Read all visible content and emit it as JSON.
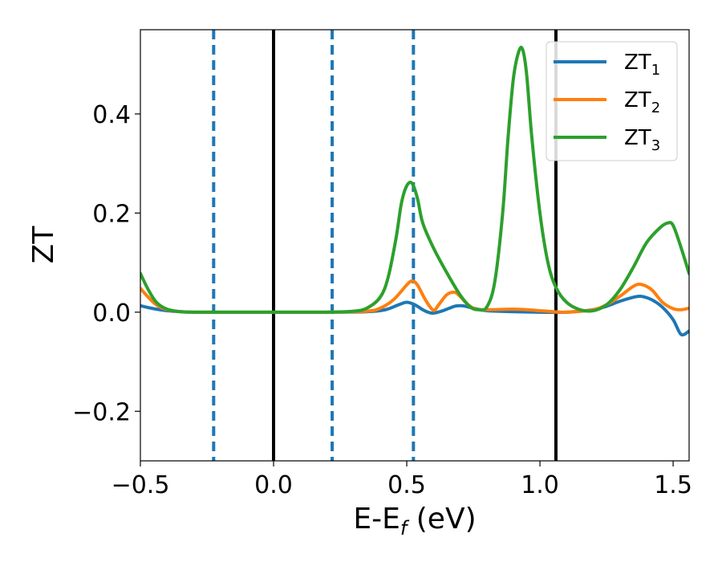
{
  "chart_data": {
    "type": "line",
    "xlabel": "E-E",
    "xlabel_sub": "f",
    "xlabel_unit": " (eV)",
    "ylabel": "ZT",
    "xlim": [
      -0.5,
      1.56
    ],
    "ylim": [
      -0.3,
      0.57
    ],
    "xticks": [
      -0.5,
      0.0,
      0.5,
      1.0,
      1.5
    ],
    "xtick_labels": [
      "−0.5",
      "0.0",
      "0.5",
      "1.0",
      "1.5"
    ],
    "yticks": [
      -0.2,
      0.0,
      0.2,
      0.4
    ],
    "ytick_labels": [
      "−0.2",
      "0.0",
      "0.2",
      "0.4"
    ],
    "grid": false,
    "legend_position": "top-right",
    "vlines_solid": [
      0.0,
      1.06
    ],
    "vlines_dashed": [
      -0.225,
      0.22,
      0.525
    ],
    "series": [
      {
        "name": "ZT",
        "name_sub": "1",
        "color": "#1f77b4",
        "x": [
          -0.5,
          -0.45,
          -0.4,
          -0.35,
          -0.3,
          -0.2,
          0.0,
          0.2,
          0.35,
          0.42,
          0.47,
          0.5,
          0.53,
          0.56,
          0.58,
          0.6,
          0.63,
          0.66,
          0.68,
          0.7,
          0.72,
          0.75,
          0.8,
          0.9,
          1.0,
          1.1,
          1.2,
          1.25,
          1.3,
          1.35,
          1.38,
          1.42,
          1.46,
          1.5,
          1.53,
          1.56
        ],
        "y": [
          0.013,
          0.007,
          0.003,
          0.001,
          0.0,
          0.0,
          0.0,
          0.0,
          0.001,
          0.005,
          0.015,
          0.02,
          0.015,
          0.005,
          0.0,
          -0.002,
          0.002,
          0.008,
          0.012,
          0.013,
          0.012,
          0.008,
          0.003,
          0.001,
          0.0,
          0.0,
          0.005,
          0.012,
          0.022,
          0.03,
          0.032,
          0.025,
          0.01,
          -0.015,
          -0.045,
          -0.038
        ]
      },
      {
        "name": "ZT",
        "name_sub": "2",
        "color": "#ff7f0e",
        "x": [
          -0.5,
          -0.47,
          -0.44,
          -0.4,
          -0.35,
          -0.3,
          -0.2,
          0.0,
          0.2,
          0.35,
          0.4,
          0.45,
          0.5,
          0.52,
          0.54,
          0.57,
          0.6,
          0.62,
          0.65,
          0.68,
          0.7,
          0.73,
          0.76,
          0.8,
          0.9,
          0.95,
          1.0,
          1.05,
          1.1,
          1.2,
          1.25,
          1.3,
          1.35,
          1.38,
          1.42,
          1.46,
          1.5,
          1.53,
          1.56
        ],
        "y": [
          0.048,
          0.03,
          0.015,
          0.005,
          0.001,
          0.0,
          0.0,
          0.0,
          0.0,
          0.002,
          0.008,
          0.025,
          0.055,
          0.063,
          0.055,
          0.025,
          0.004,
          0.015,
          0.035,
          0.04,
          0.032,
          0.015,
          0.006,
          0.005,
          0.006,
          0.005,
          0.003,
          0.001,
          0.0,
          0.005,
          0.015,
          0.032,
          0.052,
          0.056,
          0.045,
          0.02,
          0.007,
          0.005,
          0.008
        ]
      },
      {
        "name": "ZT",
        "name_sub": "3",
        "color": "#2ca02c",
        "x": [
          -0.5,
          -0.47,
          -0.44,
          -0.4,
          -0.35,
          -0.3,
          -0.2,
          0.0,
          0.2,
          0.3,
          0.35,
          0.4,
          0.43,
          0.46,
          0.48,
          0.5,
          0.52,
          0.54,
          0.56,
          0.6,
          0.65,
          0.7,
          0.74,
          0.77,
          0.8,
          0.83,
          0.86,
          0.88,
          0.9,
          0.92,
          0.935,
          0.95,
          0.97,
          1.0,
          1.03,
          1.06,
          1.1,
          1.15,
          1.2,
          1.25,
          1.3,
          1.35,
          1.4,
          1.45,
          1.48,
          1.5,
          1.53,
          1.56
        ],
        "y": [
          0.078,
          0.045,
          0.02,
          0.006,
          0.001,
          0.0,
          0.0,
          0.0,
          0.0,
          0.002,
          0.008,
          0.03,
          0.07,
          0.15,
          0.22,
          0.255,
          0.26,
          0.23,
          0.18,
          0.13,
          0.08,
          0.035,
          0.01,
          0.005,
          0.01,
          0.06,
          0.2,
          0.35,
          0.47,
          0.525,
          0.53,
          0.48,
          0.35,
          0.2,
          0.1,
          0.05,
          0.02,
          0.005,
          0.003,
          0.015,
          0.045,
          0.09,
          0.14,
          0.17,
          0.18,
          0.175,
          0.13,
          0.078
        ]
      }
    ]
  }
}
